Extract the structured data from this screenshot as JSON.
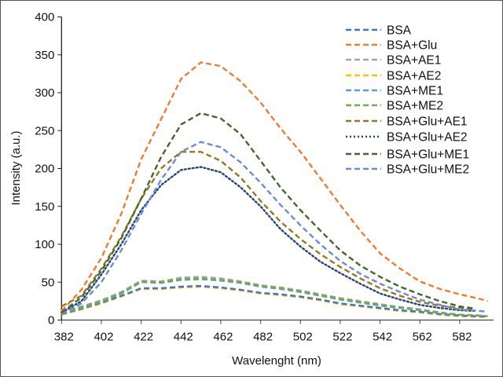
{
  "chart_data": {
    "type": "line",
    "title": "",
    "xlabel": "Wavelenght (nm)",
    "ylabel": "Intensity (a.u.)",
    "xlim": [
      382,
      599
    ],
    "ylim": [
      0,
      400
    ],
    "xticks": [
      382,
      402,
      422,
      442,
      462,
      482,
      502,
      522,
      542,
      562,
      582
    ],
    "yticks": [
      0,
      50,
      100,
      150,
      200,
      250,
      300,
      350,
      400
    ],
    "grid": false,
    "legend": "top-right",
    "series": [
      {
        "name": "BSA",
        "color": "#4472c4",
        "style": "dashed",
        "x": [
          382,
          392,
          402,
          412,
          422,
          432,
          442,
          452,
          462,
          472,
          482,
          492,
          502,
          512,
          522,
          532,
          542,
          552,
          562,
          572,
          582,
          592,
          596
        ],
        "y": [
          8,
          15,
          23,
          32,
          42,
          42,
          44,
          45,
          43,
          40,
          36,
          34,
          31,
          27,
          22,
          19,
          16,
          13,
          11,
          8,
          6,
          5,
          5
        ]
      },
      {
        "name": "BSA+Glu",
        "color": "#ed7d31",
        "style": "dashed",
        "x": [
          382,
          392,
          402,
          412,
          422,
          432,
          442,
          452,
          462,
          472,
          482,
          492,
          502,
          512,
          522,
          532,
          542,
          552,
          562,
          572,
          582,
          592,
          596
        ],
        "y": [
          12,
          40,
          82,
          140,
          212,
          265,
          318,
          340,
          335,
          315,
          287,
          253,
          222,
          187,
          152,
          118,
          88,
          68,
          51,
          41,
          34,
          28,
          25
        ]
      },
      {
        "name": "BSA+AE1",
        "color": "#a5a5a5",
        "style": "dashed",
        "x": [
          382,
          392,
          402,
          412,
          422,
          432,
          442,
          452,
          462,
          472,
          482,
          492,
          502,
          512,
          522,
          532,
          542,
          552,
          562,
          572,
          582,
          592,
          596
        ],
        "y": [
          11,
          18,
          26,
          37,
          52,
          51,
          56,
          57,
          55,
          51,
          46,
          43,
          39,
          34,
          29,
          25,
          21,
          17,
          14,
          10,
          7,
          6,
          5
        ]
      },
      {
        "name": "BSA+AE2",
        "color": "#ffc000",
        "style": "dashed",
        "x": [
          382,
          392,
          402,
          412,
          422,
          432,
          442,
          452,
          462,
          472,
          482,
          492,
          502,
          512,
          522,
          532,
          542,
          552,
          562,
          572,
          582,
          592,
          596
        ],
        "y": [
          7,
          14,
          22,
          31,
          41,
          41,
          43,
          44,
          42,
          39,
          35,
          33,
          30,
          26,
          21,
          18,
          15,
          12,
          10,
          7,
          5,
          4,
          4
        ]
      },
      {
        "name": "BSA+ME1",
        "color": "#5b9bd5",
        "style": "dashed",
        "x": [
          382,
          392,
          402,
          412,
          422,
          432,
          442,
          452,
          462,
          472,
          482,
          492,
          502,
          512,
          522,
          532,
          542,
          552,
          562,
          572,
          582,
          592,
          596
        ],
        "y": [
          9,
          16,
          24,
          35,
          50,
          49,
          53,
          54,
          52,
          49,
          44,
          41,
          37,
          32,
          27,
          23,
          19,
          16,
          13,
          9,
          7,
          6,
          5
        ]
      },
      {
        "name": "BSA+ME2",
        "color": "#70ad47",
        "style": "dashed",
        "x": [
          382,
          392,
          402,
          412,
          422,
          432,
          442,
          452,
          462,
          472,
          482,
          492,
          502,
          512,
          522,
          532,
          542,
          552,
          562,
          572,
          582,
          592,
          596
        ],
        "y": [
          10,
          17,
          25,
          36,
          51,
          50,
          54,
          55,
          53,
          50,
          45,
          42,
          38,
          33,
          28,
          24,
          20,
          17,
          14,
          10,
          7,
          6,
          5
        ]
      },
      {
        "name": "BSA+Glu+AE1",
        "color": "#9c7426",
        "style": "dashed",
        "x": [
          382,
          392,
          402,
          412,
          422,
          432,
          442,
          452,
          462,
          472,
          482,
          492,
          502,
          512,
          522,
          532,
          542,
          552,
          562,
          572,
          582,
          590
        ],
        "y": [
          18,
          32,
          68,
          110,
          160,
          200,
          222,
          222,
          210,
          188,
          157,
          130,
          107,
          87,
          70,
          55,
          42,
          32,
          24,
          19,
          16,
          14
        ]
      },
      {
        "name": "BSA+Glu+AE2",
        "color": "#264478",
        "style": "dotted",
        "x": [
          382,
          392,
          402,
          412,
          422,
          432,
          442,
          452,
          462,
          472,
          482,
          492,
          502,
          512,
          522,
          532,
          542,
          552,
          562,
          572,
          582,
          590
        ],
        "y": [
          10,
          25,
          60,
          100,
          145,
          178,
          198,
          202,
          195,
          175,
          150,
          120,
          97,
          77,
          62,
          48,
          35,
          27,
          20,
          16,
          13,
          12
        ]
      },
      {
        "name": "BSA+Glu+ME1",
        "color": "#43682b",
        "style": "dashed",
        "x": [
          382,
          392,
          402,
          412,
          422,
          432,
          442,
          452,
          462,
          472,
          482,
          492,
          502,
          512,
          522,
          532,
          542,
          552,
          562,
          572,
          582,
          590
        ],
        "y": [
          10,
          30,
          65,
          108,
          160,
          215,
          258,
          273,
          266,
          245,
          210,
          175,
          145,
          118,
          92,
          72,
          57,
          44,
          34,
          25,
          18,
          15
        ]
      },
      {
        "name": "BSA+Glu+ME2",
        "color": "#698ed0",
        "style": "dashed",
        "x": [
          382,
          392,
          402,
          412,
          422,
          432,
          442,
          452,
          462,
          472,
          482,
          492,
          502,
          512,
          522,
          532,
          542,
          552,
          562,
          572,
          582,
          592,
          596
        ],
        "y": [
          8,
          22,
          50,
          92,
          140,
          185,
          222,
          235,
          228,
          208,
          181,
          152,
          125,
          100,
          78,
          61,
          48,
          37,
          27,
          20,
          14,
          12,
          11
        ]
      }
    ]
  }
}
